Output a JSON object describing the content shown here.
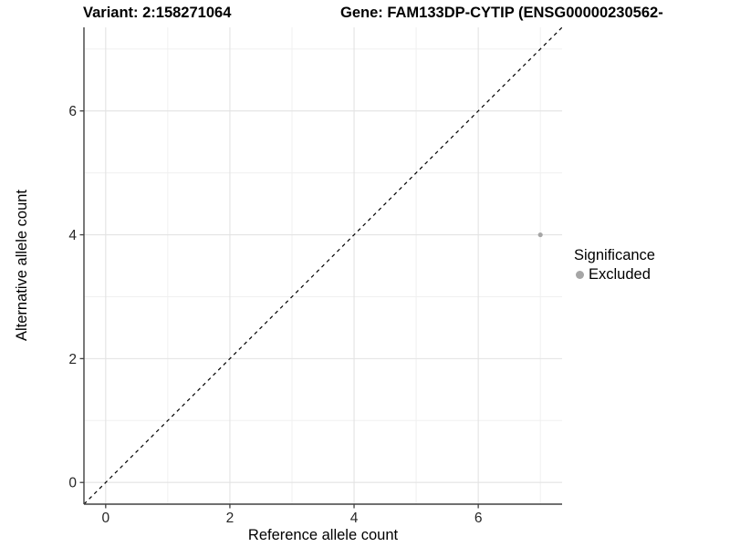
{
  "titles": {
    "left": "Variant: 2:158271064",
    "right": "Gene: FAM133DP-CYTIP (ENSG00000230562-"
  },
  "chart_data": {
    "type": "scatter",
    "xlabel": "Reference allele count",
    "ylabel": "Alternative allele count",
    "xlim": [
      -0.35,
      7.35
    ],
    "ylim": [
      -0.35,
      7.35
    ],
    "x_ticks": [
      0,
      2,
      4,
      6
    ],
    "y_ticks": [
      0,
      2,
      4,
      6
    ],
    "x_tick_labels": [
      "0",
      "2",
      "4",
      "6"
    ],
    "y_tick_labels": [
      "0",
      "2",
      "4",
      "6"
    ],
    "x_minor_ticks": [
      1,
      3,
      5,
      7
    ],
    "y_minor_ticks": [
      1,
      3,
      5,
      7
    ],
    "grid": true,
    "points": [
      {
        "x": 7,
        "y": 4,
        "series": "Excluded"
      }
    ],
    "reference_line": {
      "kind": "identity",
      "style": "dashed",
      "color": "#000000"
    },
    "legend": {
      "title": "Significance",
      "position": "right",
      "entries": [
        {
          "label": "Excluded",
          "color": "#a6a6a6"
        }
      ]
    },
    "colors": {
      "point": "#a6a6a6",
      "grid_major": "#e3e3e3",
      "grid_minor": "#f0f0f0",
      "axis_line": "#404040",
      "tick_text": "#262626"
    }
  }
}
